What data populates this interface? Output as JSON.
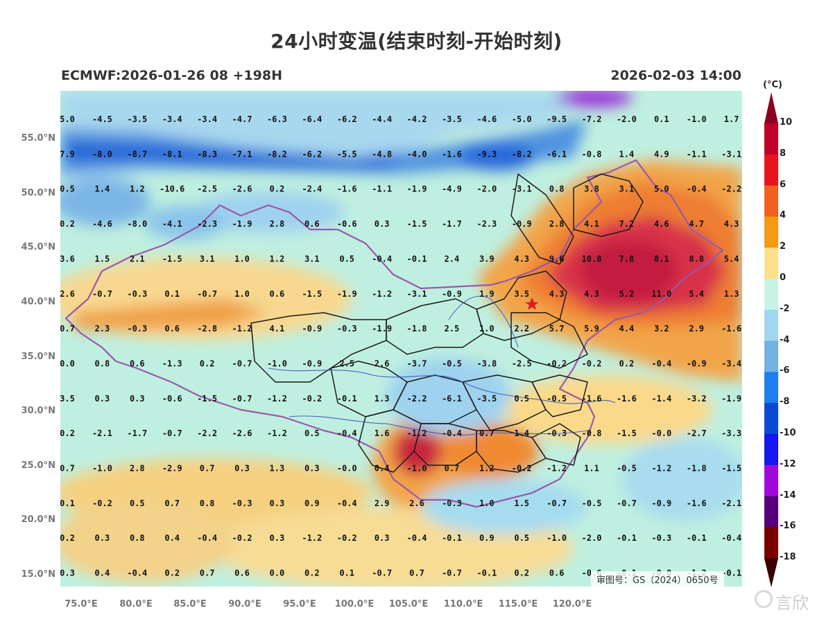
{
  "title": "24小时变温(结束时刻-开始时刻)",
  "subtitle_left": "ECMWF:2026-01-26 08 +198H",
  "subtitle_right": "2026-02-03 14:00",
  "colorbar": {
    "unit": "(°C)",
    "labels": [
      "10",
      "8",
      "6",
      "4",
      "2",
      "0",
      "-2",
      "-4",
      "-6",
      "-8",
      "-10",
      "-12",
      "-14",
      "-16",
      "-18"
    ],
    "colors": [
      "#8b0020",
      "#c0002a",
      "#e8141e",
      "#f0601e",
      "#f59a12",
      "#fbe08a",
      "#c8f2e4",
      "#a2d6f0",
      "#74b0e0",
      "#1e7ef0",
      "#0a4ad0",
      "#1616f0",
      "#a00ad8",
      "#55007a",
      "#7a0000",
      "#3a0000"
    ]
  },
  "axes": {
    "lat_labels": [
      "55.0°N",
      "50.0°N",
      "45.0°N",
      "40.0°N",
      "35.0°N",
      "30.0°N",
      "25.0°N",
      "20.0°N",
      "15.0°N"
    ],
    "lon_labels": [
      "75.0°E",
      "80.0°E",
      "85.0°E",
      "90.0°E",
      "95.0°E",
      "100.0°E",
      "105.0°E",
      "110.0°E",
      "115.0°E",
      "120.0°E"
    ]
  },
  "grid_values": [
    [
      "5.0",
      "-4.5",
      "-3.5",
      "-3.4",
      "-3.4",
      "-4.7",
      "-6.3",
      "-6.4",
      "-6.2",
      "-4.4",
      "-4.2",
      "-3.5",
      "-4.6",
      "-5.0",
      "-9.5",
      "-7.2",
      "-2.0",
      "0.1",
      "-1.0",
      "1.7"
    ],
    [
      "7.9",
      "-8.0",
      "-8.7",
      "-8.1",
      "-8.3",
      "-7.1",
      "-8.2",
      "-6.2",
      "-5.5",
      "-4.8",
      "-4.0",
      "-1.6",
      "-9.3",
      "-8.2",
      "-6.1",
      "-0.8",
      "1.4",
      "4.9",
      "-1.1",
      "-3.1"
    ],
    [
      "0.5",
      "1.4",
      "1.2",
      "-10.6",
      "-2.5",
      "-2.6",
      "0.2",
      "-2.4",
      "-1.6",
      "-1.1",
      "-1.9",
      "-4.9",
      "-2.0",
      "-3.1",
      "0.8",
      "3.8",
      "3.1",
      "5.0",
      "-0.4",
      "-2.2"
    ],
    [
      "0.2",
      "-4.6",
      "-8.0",
      "-4.1",
      "-2.3",
      "-1.9",
      "2.8",
      "0.6",
      "-0.6",
      "0.3",
      "-1.5",
      "-1.7",
      "-2.3",
      "-0.9",
      "2.8",
      "4.1",
      "7.2",
      "4.6",
      "4.7",
      "4.3"
    ],
    [
      "3.6",
      "1.5",
      "2.1",
      "-1.5",
      "3.1",
      "1.0",
      "1.2",
      "3.1",
      "0.5",
      "-0.4",
      "-0.1",
      "2.4",
      "3.9",
      "4.3",
      "9.6",
      "10.8",
      "7.8",
      "8.1",
      "8.8",
      "5.4"
    ],
    [
      "2.6",
      "-0.7",
      "-0.3",
      "0.1",
      "-0.7",
      "1.0",
      "0.6",
      "-1.5",
      "-1.9",
      "-1.2",
      "-3.1",
      "-0.9",
      "1.9",
      "3.5",
      "4.3",
      "4.3",
      "5.2",
      "11.0",
      "5.4",
      "1.3"
    ],
    [
      "0.7",
      "2.3",
      "-0.3",
      "0.6",
      "-2.8",
      "-1.2",
      "4.1",
      "-0.9",
      "-0.3",
      "-1.9",
      "-1.8",
      "2.5",
      "1.0",
      "2.2",
      "5.7",
      "5.9",
      "4.4",
      "3.2",
      "2.9",
      "-1.6"
    ],
    [
      "0.0",
      "0.8",
      "0.6",
      "-1.3",
      "0.2",
      "-0.7",
      "-1.0",
      "-0.9",
      "2.5",
      "2.6",
      "-3.7",
      "-0.5",
      "-3.8",
      "-2.5",
      "-0.2",
      "-0.2",
      "0.2",
      "-0.4",
      "-0.9",
      "-3.4"
    ],
    [
      "3.5",
      "0.3",
      "0.3",
      "-0.6",
      "-1.5",
      "-0.7",
      "-1.2",
      "-0.2",
      "-0.1",
      "1.3",
      "-2.2",
      "-6.1",
      "-3.5",
      "0.5",
      "-0.5",
      "-1.6",
      "-1.6",
      "-1.4",
      "-3.2",
      "-1.9"
    ],
    [
      "0.2",
      "-2.1",
      "-1.7",
      "-0.7",
      "-2.2",
      "-2.6",
      "-1.2",
      "0.5",
      "-0.4",
      "1.6",
      "-1.2",
      "-0.4",
      "0.7",
      "1.4",
      "-0.3",
      "-0.8",
      "-1.5",
      "-0.0",
      "-2.7",
      "-3.3"
    ],
    [
      "0.7",
      "-1.0",
      "2.8",
      "-2.9",
      "0.7",
      "0.3",
      "1.3",
      "0.3",
      "-0.0",
      "0.4",
      "-1.0",
      "0.7",
      "1.2",
      "-0.2",
      "-1.2",
      "1.1",
      "-0.5",
      "-1.2",
      "-1.8",
      "-1.5"
    ],
    [
      "0.1",
      "-0.2",
      "0.5",
      "0.7",
      "0.8",
      "-0.3",
      "0.3",
      "0.9",
      "-0.4",
      "2.9",
      "2.6",
      "-0.3",
      "1.0",
      "1.5",
      "-0.7",
      "-0.5",
      "-0.7",
      "-0.9",
      "-1.6",
      "-2.1"
    ],
    [
      "0.2",
      "0.3",
      "0.8",
      "0.4",
      "-0.4",
      "-0.2",
      "0.3",
      "-1.2",
      "-0.2",
      "0.3",
      "-0.4",
      "-0.1",
      "0.9",
      "0.5",
      "-1.0",
      "-2.0",
      "-0.1",
      "-0.3",
      "-0.1",
      "-0.4"
    ],
    [
      "0.3",
      "0.4",
      "-0.4",
      "0.2",
      "0.7",
      "0.6",
      "0.0",
      "0.2",
      "0.1",
      "-0.7",
      "0.7",
      "-0.7",
      "-0.1",
      "0.2",
      "0.6",
      "-0.6",
      "-0.1",
      "-0.0",
      "-1.2",
      "-0.1"
    ]
  ],
  "approval_number": "审图号：GS（2024）0650号",
  "watermark": "言欣"
}
